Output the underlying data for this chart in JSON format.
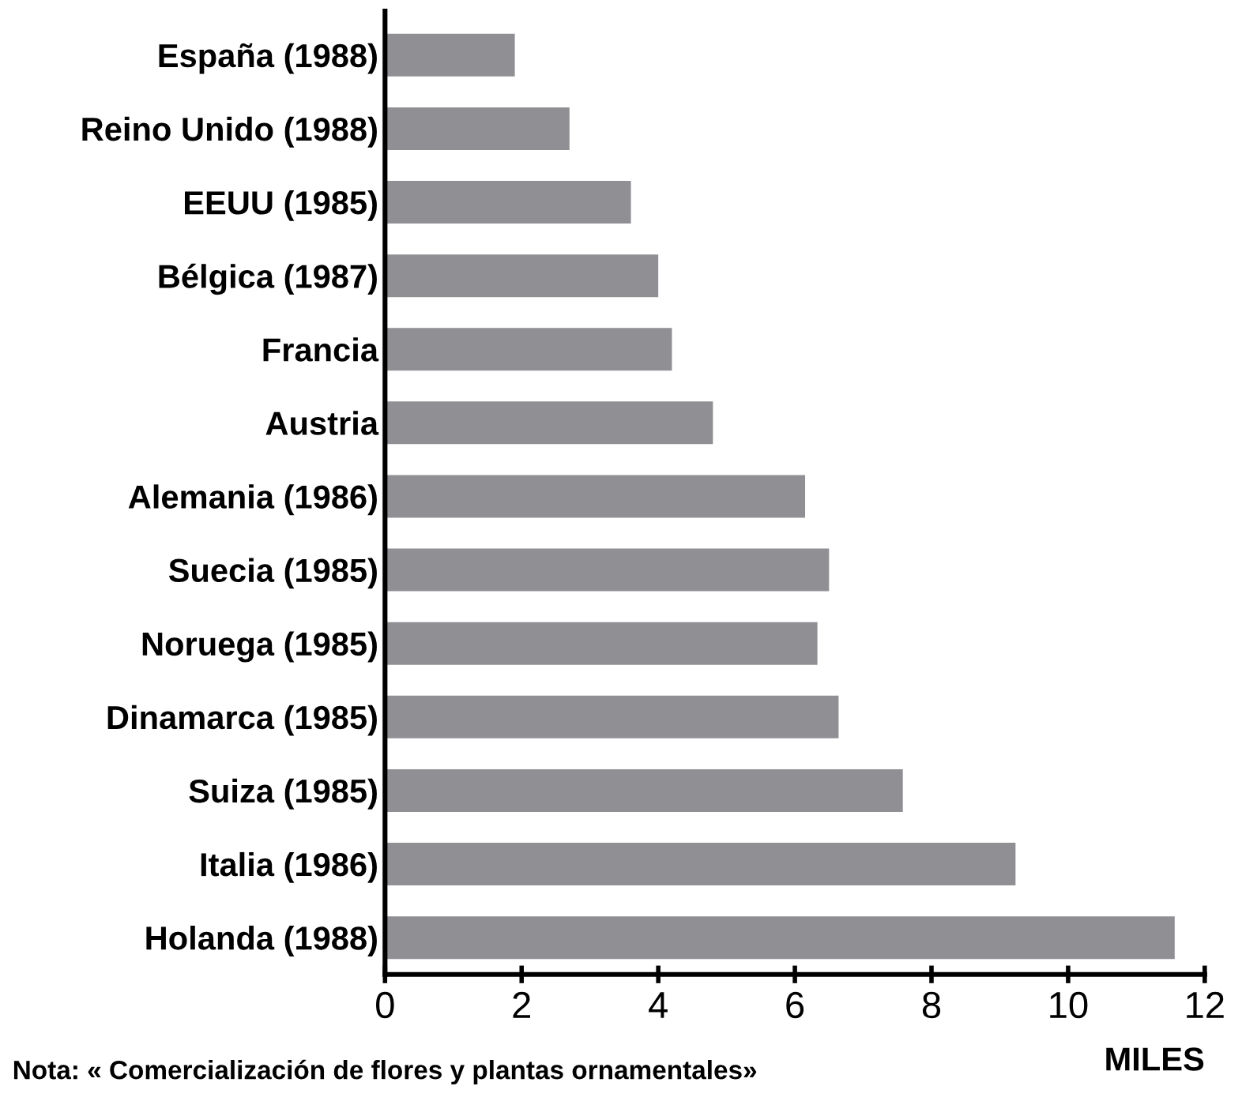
{
  "chart_data": {
    "type": "bar",
    "orientation": "horizontal",
    "categories": [
      "España (1988)",
      "Reino Unido (1988)",
      "EEUU (1985)",
      "Bélgica (1987)",
      "Francia",
      "Austria",
      "Alemania (1986)",
      "Suecia (1985)",
      "Noruega (1985)",
      "Dinamarca (1985)",
      "Suiza (1985)",
      "Italia (1986)",
      "Holanda (1988)"
    ],
    "values": [
      1.9,
      2.7,
      3.6,
      4.0,
      4.2,
      4.8,
      6.15,
      6.5,
      6.33,
      6.64,
      7.58,
      9.23,
      11.56
    ],
    "color": "#8f8f94",
    "xlim": [
      0,
      12
    ],
    "xticks": [
      0,
      2,
      4,
      6,
      8,
      10,
      12
    ],
    "xlabel": "MILES",
    "annotations": [
      "Nota: « Comercialización de flores y plantas ornamentales»"
    ],
    "grid": false
  }
}
